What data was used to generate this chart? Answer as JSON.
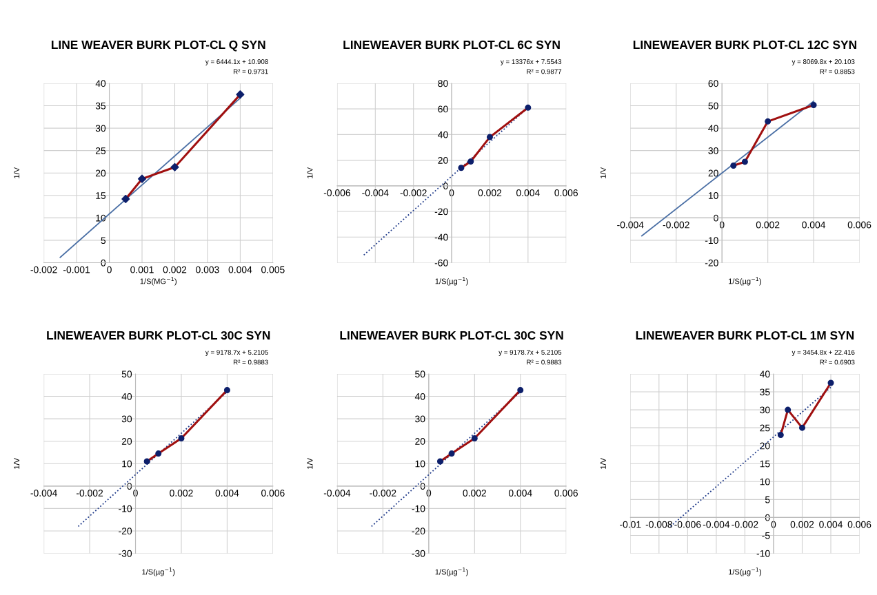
{
  "chart_data": [
    {
      "type": "line",
      "title": "LINE WEAVER BURK PLOT-CL Q SYN",
      "xlabel": "1/S(MG$^{−1}$)",
      "ylabel": "1/V",
      "annotations": [
        "y = 6444.1x + 10.908",
        "R² = 0.9731"
      ],
      "xlim": [
        -0.002,
        0.005
      ],
      "xticks": [
        -0.002,
        -0.001,
        0,
        0.001,
        0.002,
        0.003,
        0.004,
        0.005
      ],
      "ylim": [
        0,
        40
      ],
      "yticks": [
        0,
        5,
        10,
        15,
        20,
        25,
        30,
        35,
        40
      ],
      "grid": true,
      "series": [
        {
          "type": "line",
          "color": "#4a6fa5",
          "x": [
            -0.0015,
            0.004
          ],
          "values": [
            1.2,
            36.7
          ],
          "line_style": "solid",
          "marker": "none"
        },
        {
          "type": "line",
          "color": "#a01010",
          "x": [
            0.0005,
            0.001,
            0.002,
            0.004
          ],
          "values": [
            14.2,
            18.7,
            21.3,
            37.5
          ],
          "line_style": "solid",
          "marker": "none"
        },
        {
          "type": "scatter",
          "color": "#0d1f6b",
          "x": [
            0.0005,
            0.001,
            0.002,
            0.004
          ],
          "values": [
            14.2,
            18.7,
            21.3,
            37.5
          ],
          "marker": "diamond"
        }
      ]
    },
    {
      "type": "line",
      "title": "LINEWEAVER BURK PLOT-CL 6C SYN",
      "xlabel": "1/S(µg$^{−1}$)",
      "ylabel": "1/V",
      "annotations": [
        "y = 13376x + 7.5543",
        "R² = 0.9877"
      ],
      "xlim": [
        -0.006,
        0.006
      ],
      "xticks": [
        -0.006,
        -0.004,
        -0.002,
        0,
        0.002,
        0.004,
        0.006
      ],
      "ylim": [
        -60,
        80
      ],
      "yticks": [
        -60,
        -40,
        -20,
        0,
        20,
        40,
        60,
        80
      ],
      "grid": true,
      "series": [
        {
          "type": "line",
          "color": "#1f3a8a",
          "x": [
            -0.0046,
            0.004
          ],
          "values": [
            -54,
            61
          ],
          "line_style": "dotted",
          "marker": "none"
        },
        {
          "type": "line",
          "color": "#a01010",
          "x": [
            0.0005,
            0.001,
            0.002,
            0.004
          ],
          "values": [
            14,
            19,
            38,
            61
          ],
          "line_style": "solid",
          "marker": "none"
        },
        {
          "type": "scatter",
          "color": "#0d1f6b",
          "x": [
            0.0005,
            0.001,
            0.002,
            0.004
          ],
          "values": [
            14,
            19,
            38,
            61
          ],
          "marker": "circle"
        }
      ]
    },
    {
      "type": "line",
      "title": "LINEWEAVER BURK PLOT-CL 12C SYN",
      "xlabel": "1/S(µg$^{−1}$)",
      "ylabel": "1/V",
      "annotations": [
        "y = 8069.8x + 20.103",
        "R² = 0.8853"
      ],
      "xlim": [
        -0.004,
        0.006
      ],
      "xticks": [
        -0.004,
        -0.002,
        0,
        0.002,
        0.004,
        0.006
      ],
      "ylim": [
        -20,
        60
      ],
      "yticks": [
        -20,
        -10,
        0,
        10,
        20,
        30,
        40,
        50,
        60
      ],
      "grid": true,
      "series": [
        {
          "type": "line",
          "color": "#4a6fa5",
          "x": [
            -0.0035,
            0.004
          ],
          "values": [
            -8,
            52
          ],
          "line_style": "solid",
          "marker": "none"
        },
        {
          "type": "line",
          "color": "#a01010",
          "x": [
            0.0005,
            0.001,
            0.002,
            0.004
          ],
          "values": [
            23.3,
            25,
            43,
            50.3
          ],
          "line_style": "solid",
          "marker": "none"
        },
        {
          "type": "scatter",
          "color": "#0d1f6b",
          "x": [
            0.0005,
            0.001,
            0.002,
            0.004
          ],
          "values": [
            23.3,
            25,
            43,
            50.3
          ],
          "marker": "circle"
        }
      ]
    },
    {
      "type": "line",
      "title": "LINEWEAVER BURK PLOT-CL 30C SYN",
      "xlabel": "1/S(µg$^{−1}$)",
      "ylabel": "1/V",
      "annotations": [
        "y = 9178.7x + 5.2105",
        "R² = 0.9883"
      ],
      "xlim": [
        -0.004,
        0.006
      ],
      "xticks": [
        -0.004,
        -0.002,
        0,
        0.002,
        0.004,
        0.006
      ],
      "ylim": [
        -30,
        50
      ],
      "yticks": [
        -30,
        -20,
        -10,
        0,
        10,
        20,
        30,
        40,
        50
      ],
      "grid": true,
      "series": [
        {
          "type": "line",
          "color": "#1f3a8a",
          "x": [
            -0.0025,
            0.004
          ],
          "values": [
            -18,
            42
          ],
          "line_style": "dotted",
          "marker": "none"
        },
        {
          "type": "line",
          "color": "#a01010",
          "x": [
            0.0005,
            0.001,
            0.002,
            0.004
          ],
          "values": [
            11,
            14.5,
            21.3,
            42.8
          ],
          "line_style": "solid",
          "marker": "none"
        },
        {
          "type": "scatter",
          "color": "#0d1f6b",
          "x": [
            0.0005,
            0.001,
            0.002,
            0.004
          ],
          "values": [
            11,
            14.5,
            21.3,
            42.8
          ],
          "marker": "circle"
        }
      ]
    },
    {
      "type": "line",
      "title": "LINEWEAVER BURK PLOT-CL 30C SYN",
      "xlabel": "1/S(µg$^{−1}$)",
      "ylabel": "1/V",
      "annotations": [
        "y = 9178.7x + 5.2105",
        "R² = 0.9883"
      ],
      "xlim": [
        -0.004,
        0.006
      ],
      "xticks": [
        -0.004,
        -0.002,
        0,
        0.002,
        0.004,
        0.006
      ],
      "ylim": [
        -30,
        50
      ],
      "yticks": [
        -30,
        -20,
        -10,
        0,
        10,
        20,
        30,
        40,
        50
      ],
      "grid": true,
      "series": [
        {
          "type": "line",
          "color": "#1f3a8a",
          "x": [
            -0.0025,
            0.004
          ],
          "values": [
            -18,
            42
          ],
          "line_style": "dotted",
          "marker": "none"
        },
        {
          "type": "line",
          "color": "#a01010",
          "x": [
            0.0005,
            0.001,
            0.002,
            0.004
          ],
          "values": [
            11,
            14.5,
            21.3,
            42.8
          ],
          "line_style": "solid",
          "marker": "none"
        },
        {
          "type": "scatter",
          "color": "#0d1f6b",
          "x": [
            0.0005,
            0.001,
            0.002,
            0.004
          ],
          "values": [
            11,
            14.5,
            21.3,
            42.8
          ],
          "marker": "circle"
        }
      ]
    },
    {
      "type": "line",
      "title": "LINEWEAVER BURK PLOT-CL 1M SYN",
      "xlabel": "1/S(µg$^{−1}$)",
      "ylabel": "1/V",
      "annotations": [
        "y = 3454.8x + 22.416",
        "R² = 0.6903"
      ],
      "xlim": [
        -0.01,
        0.006
      ],
      "xticks": [
        -0.01,
        -0.008,
        -0.006,
        -0.004,
        -0.002,
        0,
        0.002,
        0.004,
        0.006
      ],
      "ylim": [
        -10,
        40
      ],
      "yticks": [
        -10,
        -5,
        0,
        5,
        10,
        15,
        20,
        25,
        30,
        35,
        40
      ],
      "grid": true,
      "series": [
        {
          "type": "line",
          "color": "#1f3a8a",
          "x": [
            -0.0072,
            0.004
          ],
          "values": [
            -2.5,
            36.3
          ],
          "line_style": "dotted",
          "marker": "none"
        },
        {
          "type": "line",
          "color": "#a01010",
          "x": [
            0.0005,
            0.001,
            0.002,
            0.004
          ],
          "values": [
            23,
            30,
            25,
            37.5
          ],
          "line_style": "solid",
          "marker": "none"
        },
        {
          "type": "scatter",
          "color": "#0d1f6b",
          "x": [
            0.0005,
            0.001,
            0.002,
            0.004
          ],
          "values": [
            23,
            30,
            25,
            37.5
          ],
          "marker": "circle"
        }
      ]
    }
  ]
}
